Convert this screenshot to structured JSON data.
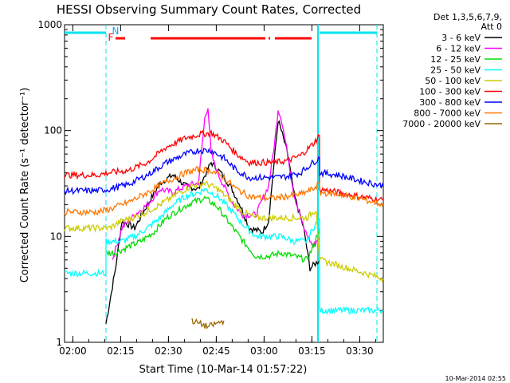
{
  "chart_data": {
    "type": "line",
    "title": "HESSI Observing Summary Count Rates, Corrected",
    "xlabel": "Start Time (10-Mar-14 01:57:22)",
    "ylabel": "Corrected Count Rate (s⁻¹ detector⁻¹)",
    "x_unit": "minutes after 01:57:22",
    "xlim": [
      0,
      100
    ],
    "ylim": [
      1,
      1000
    ],
    "y_scale": "log",
    "x_ticks": [
      {
        "label": "02:00",
        "x": 2.6
      },
      {
        "label": "02:15",
        "x": 17.6
      },
      {
        "label": "02:30",
        "x": 32.6
      },
      {
        "label": "02:45",
        "x": 47.6
      },
      {
        "label": "03:00",
        "x": 62.6
      },
      {
        "label": "03:15",
        "x": 77.6
      },
      {
        "label": "03:30",
        "x": 92.6
      }
    ],
    "y_ticks": [
      "1",
      "10",
      "100",
      "1000"
    ],
    "legend": {
      "header": [
        "Det 1,3,5,6,7,9,",
        "Att 0"
      ],
      "placement": "right"
    },
    "annotations": {
      "flag_F": "F",
      "flag_N": "N",
      "timestamp": "10-Mar-2014 02:55"
    },
    "series": [
      {
        "name": "3 - 6 keV",
        "color": "#000000",
        "values": [
          [
            13,
            1.5
          ],
          [
            16,
            5
          ],
          [
            18,
            14
          ],
          [
            22,
            12
          ],
          [
            26,
            20
          ],
          [
            30,
            32
          ],
          [
            34,
            38
          ],
          [
            38,
            30
          ],
          [
            42,
            28
          ],
          [
            46,
            50
          ],
          [
            49,
            40
          ],
          [
            52,
            30
          ],
          [
            55,
            20
          ],
          [
            58,
            12
          ],
          [
            62,
            11
          ],
          [
            64,
            14
          ],
          [
            66,
            60
          ],
          [
            67,
            125
          ],
          [
            68,
            100
          ],
          [
            70,
            60
          ],
          [
            72,
            25
          ],
          [
            75,
            12
          ],
          [
            77,
            5
          ],
          [
            80,
            6
          ]
        ]
      },
      {
        "name": "6 - 12 keV",
        "color": "#ff00ff",
        "values": [
          [
            15,
            6
          ],
          [
            18,
            12
          ],
          [
            22,
            16
          ],
          [
            26,
            20
          ],
          [
            30,
            28
          ],
          [
            34,
            26
          ],
          [
            38,
            30
          ],
          [
            42,
            32
          ],
          [
            44,
            130
          ],
          [
            45,
            170
          ],
          [
            46,
            60
          ],
          [
            48,
            40
          ],
          [
            50,
            30
          ],
          [
            53,
            20
          ],
          [
            56,
            16
          ],
          [
            60,
            16
          ],
          [
            64,
            30
          ],
          [
            66,
            80
          ],
          [
            67,
            160
          ],
          [
            68,
            130
          ],
          [
            70,
            60
          ],
          [
            72,
            25
          ],
          [
            75,
            12
          ],
          [
            78,
            8
          ],
          [
            80,
            10
          ]
        ]
      },
      {
        "name": "12 - 25 keV",
        "color": "#00dd00",
        "values": [
          [
            13,
            7
          ],
          [
            16,
            7
          ],
          [
            20,
            8
          ],
          [
            24,
            9
          ],
          [
            28,
            11
          ],
          [
            32,
            15
          ],
          [
            36,
            18
          ],
          [
            40,
            21
          ],
          [
            44,
            23
          ],
          [
            48,
            19
          ],
          [
            52,
            13
          ],
          [
            56,
            9
          ],
          [
            60,
            6.5
          ],
          [
            64,
            6.5
          ],
          [
            68,
            7
          ],
          [
            72,
            6.5
          ],
          [
            76,
            6
          ],
          [
            78,
            8
          ],
          [
            80,
            12
          ]
        ]
      },
      {
        "name": "25 - 50 keV",
        "color": "#00ffff",
        "values": [
          [
            0,
            4.5
          ],
          [
            13,
            4.5
          ],
          [
            13,
            9
          ],
          [
            18,
            9
          ],
          [
            22,
            10
          ],
          [
            26,
            12
          ],
          [
            30,
            15
          ],
          [
            34,
            20
          ],
          [
            38,
            24
          ],
          [
            42,
            26
          ],
          [
            44,
            28
          ],
          [
            48,
            24
          ],
          [
            52,
            18
          ],
          [
            56,
            13
          ],
          [
            60,
            10
          ],
          [
            64,
            10
          ],
          [
            68,
            10
          ],
          [
            72,
            9
          ],
          [
            76,
            9
          ],
          [
            78,
            12
          ],
          [
            80,
            15
          ],
          [
            80,
            2
          ],
          [
            100,
            2
          ]
        ]
      },
      {
        "name": "50 - 100 keV",
        "color": "#cccc00",
        "values": [
          [
            0,
            12
          ],
          [
            14,
            12
          ],
          [
            18,
            14
          ],
          [
            24,
            16
          ],
          [
            30,
            20
          ],
          [
            36,
            26
          ],
          [
            40,
            30
          ],
          [
            44,
            32
          ],
          [
            48,
            28
          ],
          [
            52,
            22
          ],
          [
            56,
            17
          ],
          [
            60,
            15
          ],
          [
            64,
            15
          ],
          [
            70,
            15
          ],
          [
            76,
            15
          ],
          [
            79,
            18
          ],
          [
            80,
            6
          ],
          [
            100,
            4
          ]
        ]
      },
      {
        "name": "100 - 300 keV",
        "color": "#ff0000",
        "values": [
          [
            0,
            38
          ],
          [
            10,
            38
          ],
          [
            14,
            40
          ],
          [
            20,
            42
          ],
          [
            26,
            50
          ],
          [
            32,
            70
          ],
          [
            38,
            85
          ],
          [
            42,
            92
          ],
          [
            46,
            95
          ],
          [
            50,
            80
          ],
          [
            54,
            60
          ],
          [
            58,
            50
          ],
          [
            62,
            50
          ],
          [
            66,
            50
          ],
          [
            70,
            52
          ],
          [
            74,
            58
          ],
          [
            78,
            75
          ],
          [
            80,
            90
          ],
          [
            80,
            28
          ],
          [
            86,
            26
          ],
          [
            92,
            24
          ],
          [
            100,
            22
          ]
        ]
      },
      {
        "name": "300 - 800 keV",
        "color": "#0000ff",
        "values": [
          [
            0,
            27
          ],
          [
            10,
            27
          ],
          [
            14,
            28
          ],
          [
            20,
            31
          ],
          [
            26,
            38
          ],
          [
            32,
            50
          ],
          [
            38,
            60
          ],
          [
            42,
            65
          ],
          [
            46,
            65
          ],
          [
            50,
            55
          ],
          [
            54,
            42
          ],
          [
            58,
            36
          ],
          [
            62,
            36
          ],
          [
            66,
            36
          ],
          [
            70,
            37
          ],
          [
            74,
            40
          ],
          [
            78,
            50
          ],
          [
            80,
            55
          ],
          [
            80,
            40
          ],
          [
            86,
            38
          ],
          [
            92,
            34
          ],
          [
            100,
            30
          ]
        ]
      },
      {
        "name": "800 - 7000 keV",
        "color": "#ff7700",
        "values": [
          [
            0,
            17
          ],
          [
            10,
            17
          ],
          [
            14,
            18
          ],
          [
            20,
            21
          ],
          [
            26,
            26
          ],
          [
            32,
            33
          ],
          [
            38,
            40
          ],
          [
            42,
            43
          ],
          [
            46,
            42
          ],
          [
            50,
            36
          ],
          [
            54,
            28
          ],
          [
            58,
            24
          ],
          [
            62,
            23
          ],
          [
            66,
            23
          ],
          [
            70,
            24
          ],
          [
            74,
            25
          ],
          [
            78,
            28
          ],
          [
            80,
            32
          ],
          [
            80,
            26
          ],
          [
            86,
            25
          ],
          [
            92,
            23
          ],
          [
            100,
            20
          ]
        ]
      },
      {
        "name": "7000 - 20000 keV",
        "color": "#996600",
        "values": [
          [
            40,
            1.6
          ],
          [
            45,
            1.4
          ],
          [
            50,
            1.6
          ]
        ]
      }
    ]
  }
}
